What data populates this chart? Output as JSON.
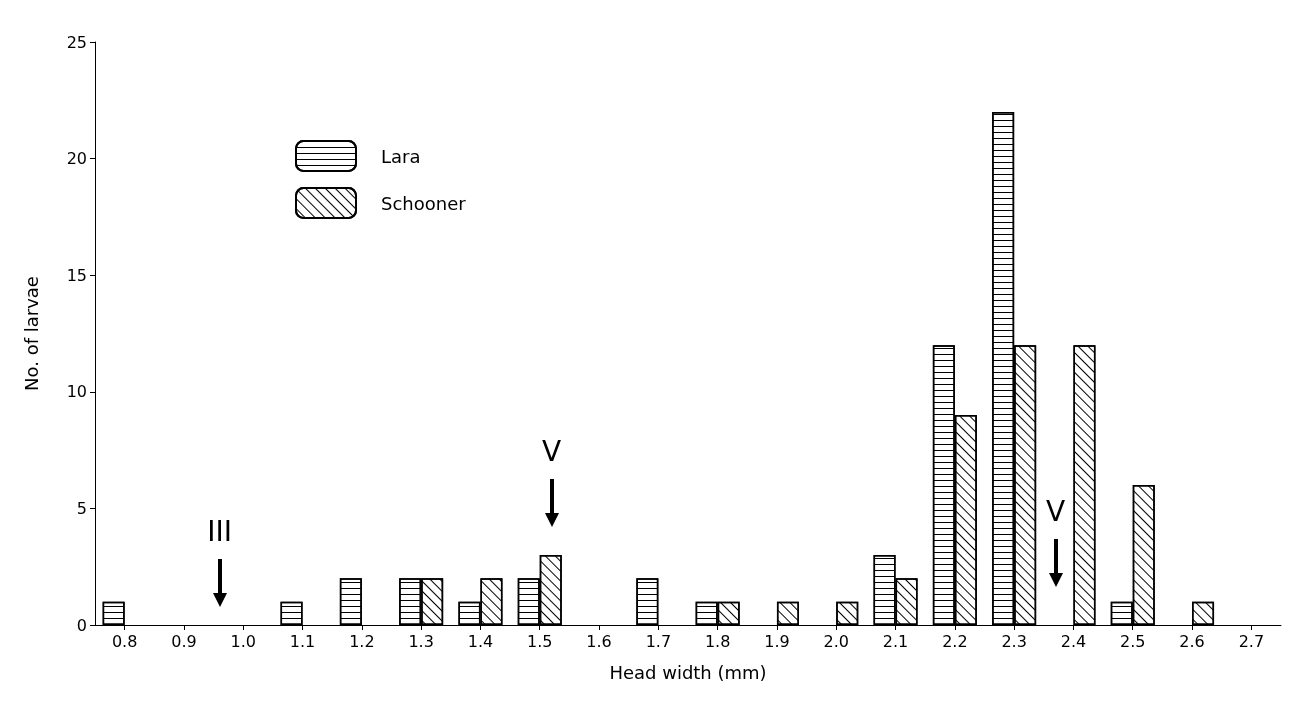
{
  "chart_data": {
    "type": "bar",
    "xlabel": "Head width (mm)",
    "ylabel": "No. of larvae",
    "categories": [
      "0.8",
      "0.9",
      "1.0",
      "1.1",
      "1.2",
      "1.3",
      "1.4",
      "1.5",
      "1.6",
      "1.7",
      "1.8",
      "1.9",
      "2.0",
      "2.1",
      "2.2",
      "2.3",
      "2.4",
      "2.5",
      "2.6",
      "2.7"
    ],
    "series": [
      {
        "name": "Lara",
        "color": "#ffffff",
        "values": [
          1,
          null,
          null,
          1,
          2,
          2,
          1,
          2,
          null,
          2,
          1,
          null,
          null,
          3,
          12,
          22,
          null,
          1,
          null,
          null
        ]
      },
      {
        "name": "Schooner",
        "color": "#ffffff",
        "values": [
          null,
          null,
          null,
          null,
          null,
          2,
          2,
          3,
          null,
          null,
          1,
          1,
          1,
          2,
          9,
          12,
          12,
          6,
          1,
          null
        ]
      }
    ],
    "ylim": [
      0,
      25
    ],
    "yticks": [
      0,
      5,
      10,
      15,
      20,
      25
    ],
    "grid": false,
    "legend": "top left",
    "annotations": [
      "III",
      "V",
      "V"
    ]
  }
}
